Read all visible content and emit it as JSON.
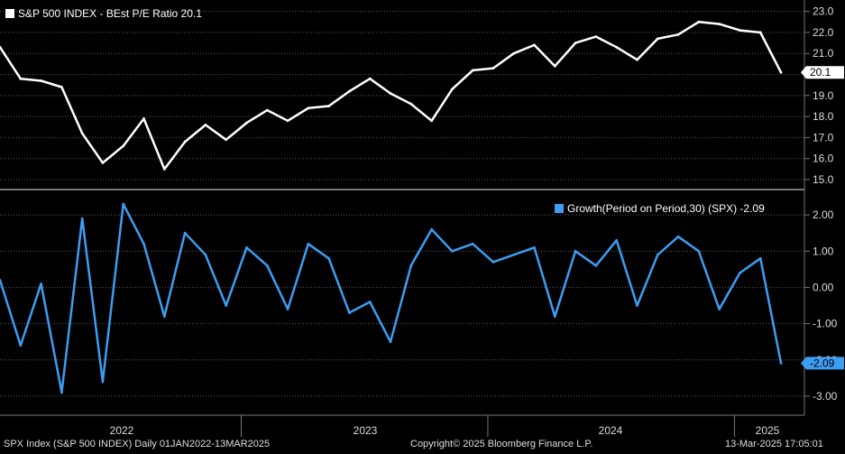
{
  "chart_data": [
    {
      "type": "line",
      "legend": "S&P 500 INDEX - BEst P/E Ratio 20.1",
      "series": [
        {
          "name": "S&P 500 INDEX - BEst P/E Ratio",
          "color": "#ffffff",
          "x": [
            "2022-01",
            "2022-02",
            "2022-03",
            "2022-04",
            "2022-05",
            "2022-06",
            "2022-07",
            "2022-08",
            "2022-09",
            "2022-10",
            "2022-11",
            "2022-12",
            "2023-01",
            "2023-02",
            "2023-03",
            "2023-04",
            "2023-05",
            "2023-06",
            "2023-07",
            "2023-08",
            "2023-09",
            "2023-10",
            "2023-11",
            "2023-12",
            "2024-01",
            "2024-02",
            "2024-03",
            "2024-04",
            "2024-05",
            "2024-06",
            "2024-07",
            "2024-08",
            "2024-09",
            "2024-10",
            "2024-11",
            "2024-12",
            "2025-01",
            "2025-02",
            "2025-03"
          ],
          "values": [
            21.3,
            19.8,
            19.7,
            19.4,
            17.2,
            15.8,
            16.6,
            17.9,
            15.5,
            16.8,
            17.6,
            16.9,
            17.7,
            18.3,
            17.8,
            18.4,
            18.5,
            19.2,
            19.8,
            19.1,
            18.6,
            17.8,
            19.3,
            20.2,
            20.3,
            21.0,
            21.4,
            20.4,
            21.5,
            21.8,
            21.3,
            20.7,
            21.7,
            21.9,
            22.5,
            22.4,
            22.1,
            22.0,
            20.1
          ]
        }
      ],
      "ylim": [
        14.7,
        23.2
      ],
      "yticks": [
        15.0,
        16.0,
        17.0,
        18.0,
        19.0,
        20.0,
        21.0,
        22.0,
        23.0
      ],
      "last_value_label": "20.1",
      "grid": true
    },
    {
      "type": "line",
      "legend": "Growth(Period on Period,30) (SPX) -2.09",
      "series": [
        {
          "name": "Growth(Period on Period,30) (SPX)",
          "color": "#3d9df2",
          "x": [
            "2022-01",
            "2022-02",
            "2022-03",
            "2022-04",
            "2022-05",
            "2022-06",
            "2022-07",
            "2022-08",
            "2022-09",
            "2022-10",
            "2022-11",
            "2022-12",
            "2023-01",
            "2023-02",
            "2023-03",
            "2023-04",
            "2023-05",
            "2023-06",
            "2023-07",
            "2023-08",
            "2023-09",
            "2023-10",
            "2023-11",
            "2023-12",
            "2024-01",
            "2024-02",
            "2024-03",
            "2024-04",
            "2024-05",
            "2024-06",
            "2024-07",
            "2024-08",
            "2024-09",
            "2024-10",
            "2024-11",
            "2024-12",
            "2025-01",
            "2025-02",
            "2025-03"
          ],
          "values": [
            0.2,
            -1.6,
            0.1,
            -2.9,
            1.9,
            -2.6,
            2.3,
            1.2,
            -0.8,
            1.5,
            0.9,
            -0.5,
            1.1,
            0.6,
            -0.6,
            1.2,
            0.8,
            -0.7,
            -0.4,
            -1.5,
            0.6,
            1.6,
            1.0,
            1.2,
            0.7,
            0.9,
            1.1,
            -0.8,
            1.0,
            0.6,
            1.3,
            -0.5,
            0.9,
            1.4,
            1.0,
            -0.6,
            0.4,
            0.8,
            -2.09
          ]
        }
      ],
      "ylim": [
        -3.4,
        2.6
      ],
      "yticks": [
        -3.0,
        -2.0,
        -1.0,
        0.0,
        1.0,
        2.0
      ],
      "ytick_labels": [
        "-3.00",
        "-2.00",
        "-1.00",
        "0.00",
        "1.00",
        "2.00"
      ],
      "last_value_label": "-2.09",
      "grid": true
    }
  ],
  "x_axis": {
    "labels": [
      "2022",
      "2023",
      "2024",
      "2025"
    ],
    "x_start": "2022-01",
    "x_end": "2025-03"
  },
  "footer": {
    "left": "SPX Index (S&P 500 INDEX)  Daily 01JAN2022-13MAR2025",
    "center": "Copyright© 2025 Bloomberg Finance L.P.",
    "right": "13-Mar-2025 17:05:01"
  },
  "colors": {
    "background": "#000000",
    "pe_line": "#ffffff",
    "growth_line": "#3d9df2",
    "grid": "#5a5a5a",
    "separator": "#777777"
  }
}
